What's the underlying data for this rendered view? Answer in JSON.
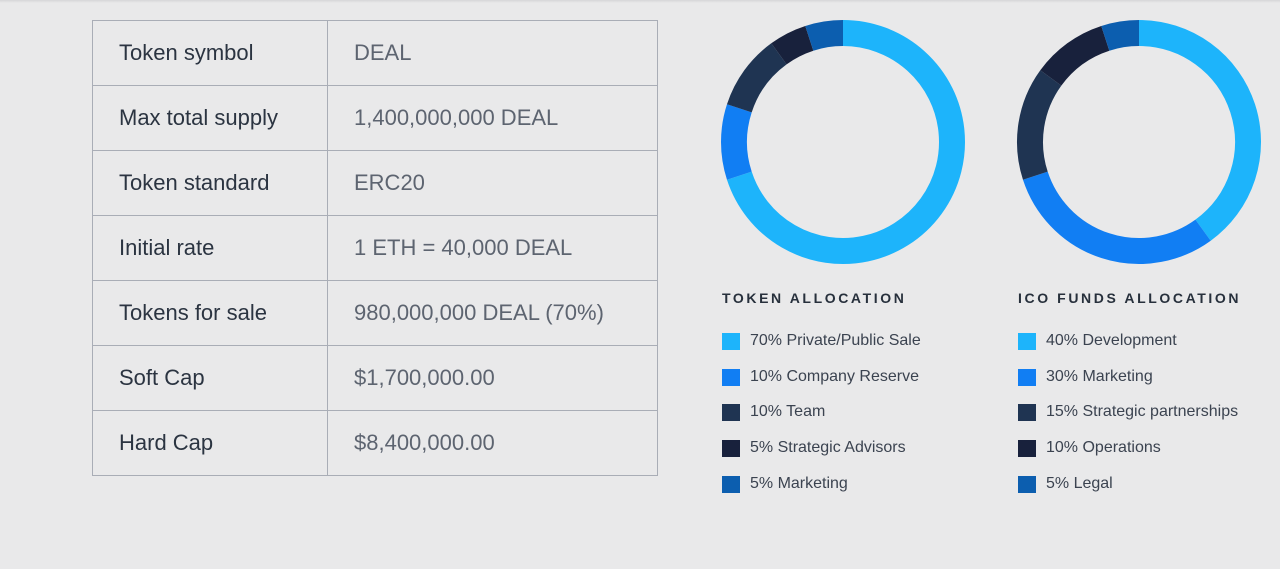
{
  "token_table": {
    "rows": [
      {
        "label": "Token symbol",
        "value": "DEAL"
      },
      {
        "label": "Max total supply",
        "value": "1,400,000,000 DEAL"
      },
      {
        "label": "Token standard",
        "value": "ERC20"
      },
      {
        "label": "Initial rate",
        "value": "1 ETH = 40,000 DEAL"
      },
      {
        "label": "Tokens for sale",
        "value": "980,000,000 DEAL (70%)"
      },
      {
        "label": "Soft Cap",
        "value": "$1,700,000.00"
      },
      {
        "label": "Hard Cap",
        "value": "$8,400,000.00"
      }
    ]
  },
  "chart_data": [
    {
      "type": "pie",
      "variant": "donut",
      "title": "TOKEN ALLOCATION",
      "slices": [
        {
          "label": "70% Private/Public Sale",
          "value": 70,
          "color": "#1db4fb"
        },
        {
          "label": "10% Company Reserve",
          "value": 10,
          "color": "#117ef3"
        },
        {
          "label": "10% Team",
          "value": 10,
          "color": "#1f3452"
        },
        {
          "label": "5% Strategic Advisors",
          "value": 5,
          "color": "#18213c"
        },
        {
          "label": "5% Marketing",
          "value": 5,
          "color": "#0c5eaf"
        }
      ]
    },
    {
      "type": "pie",
      "variant": "donut",
      "title": "ICO FUNDS ALLOCATION",
      "slices": [
        {
          "label": "40% Development",
          "value": 40,
          "color": "#1db4fb"
        },
        {
          "label": "30% Marketing",
          "value": 30,
          "color": "#117ef3"
        },
        {
          "label": "15% Strategic partnerships",
          "value": 15,
          "color": "#1f3452"
        },
        {
          "label": "10% Operations",
          "value": 10,
          "color": "#18213c"
        },
        {
          "label": "5% Legal",
          "value": 5,
          "color": "#0c5eaf"
        }
      ]
    }
  ]
}
